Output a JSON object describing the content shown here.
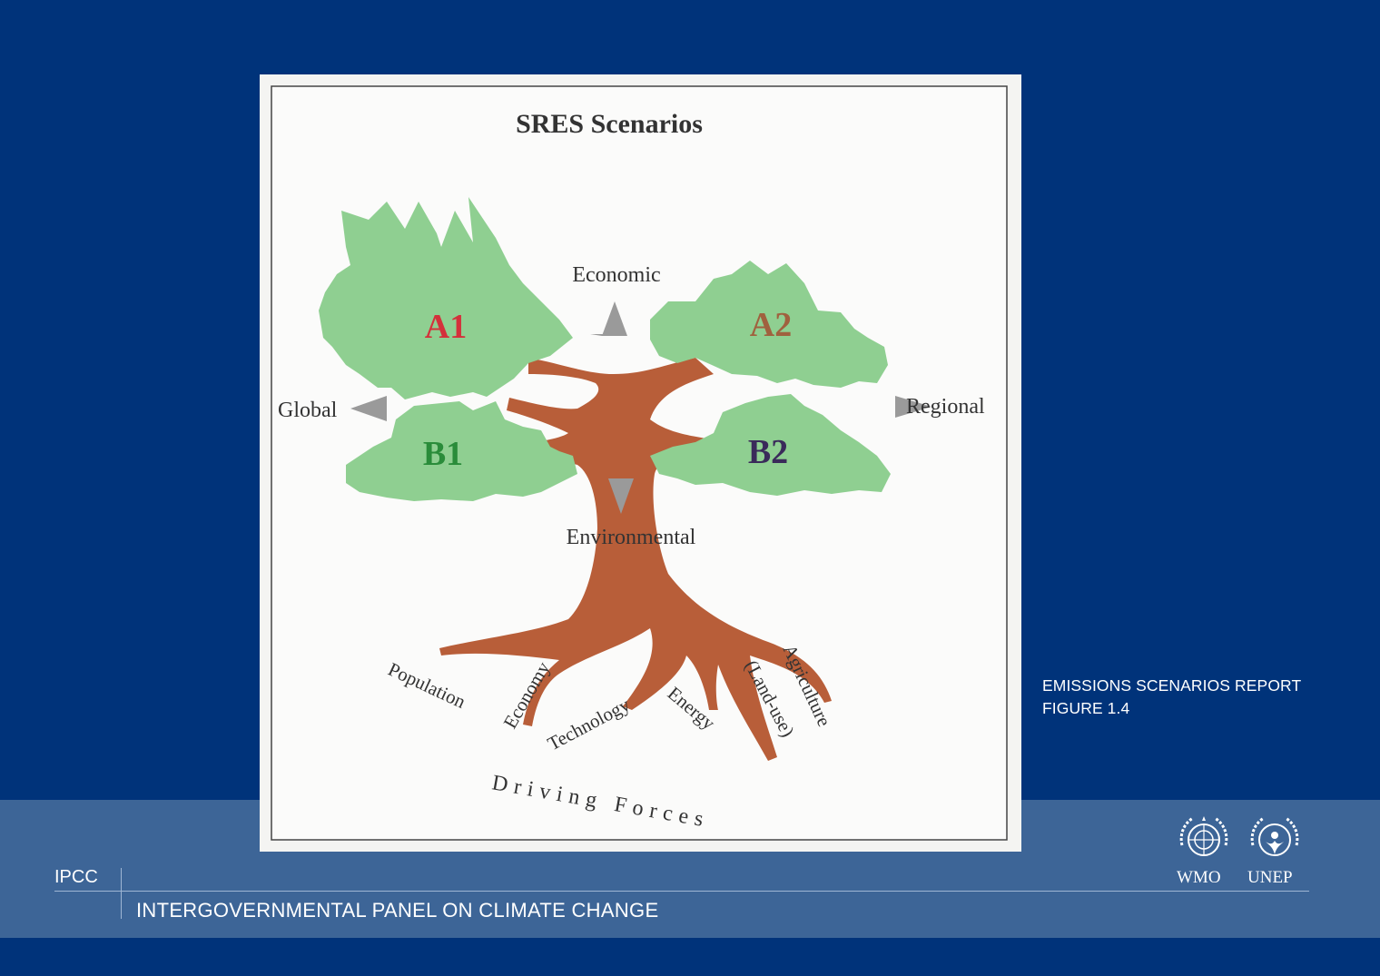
{
  "figure": {
    "title": "SRES Scenarios",
    "axes": {
      "top": "Economic",
      "bottom": "Environmental",
      "left": "Global",
      "right": "Regional"
    },
    "scenarios": [
      {
        "id": "A1",
        "label": "A1",
        "color": "#d4313b"
      },
      {
        "id": "A2",
        "label": "A2",
        "color": "#a0613e"
      },
      {
        "id": "B1",
        "label": "B1",
        "color": "#2a8c3a"
      },
      {
        "id": "B2",
        "label": "B2",
        "color": "#3a2a5a"
      }
    ],
    "roots": [
      "Population",
      "Economy",
      "Technology",
      "Energy",
      "(Land-use)",
      "Agriculture"
    ],
    "driving_forces": "Driving Forces",
    "colors": {
      "foliage": "#8fcf91",
      "trunk": "#b85e39",
      "arrow": "#9a9a9a",
      "panel": "#f4f4f2"
    }
  },
  "caption": {
    "line1": "EMISSIONS SCENARIOS REPORT",
    "line2": "FIGURE 1.4"
  },
  "footer": {
    "short_name": "IPCC",
    "full_name": "INTERGOVERNMENTAL PANEL ON CLIMATE CHANGE",
    "logos": [
      "WMO",
      "UNEP"
    ]
  }
}
